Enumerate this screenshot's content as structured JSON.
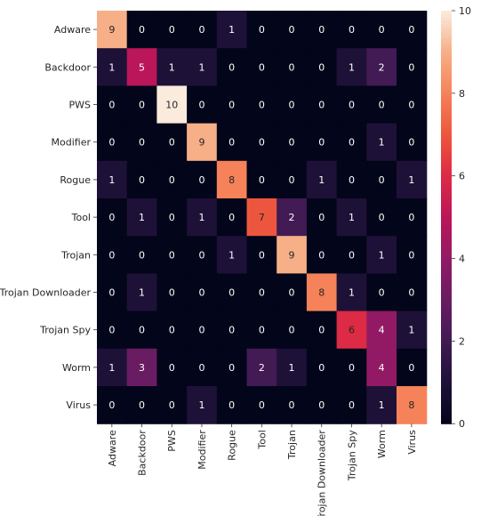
{
  "chart_data": {
    "type": "heatmap",
    "title": "",
    "xlabel": "",
    "ylabel": "",
    "x_categories": [
      "Adware",
      "Backdoor",
      "PWS",
      "Modifier",
      "Rogue",
      "Tool",
      "Trojan",
      "Trojan Downloader",
      "Trojan Spy",
      "Worm",
      "Virus"
    ],
    "y_categories": [
      "Adware",
      "Backdoor",
      "PWS",
      "Modifier",
      "Rogue",
      "Tool",
      "Trojan",
      "Trojan Downloader",
      "Trojan Spy",
      "Worm",
      "Virus"
    ],
    "values": [
      [
        9,
        0,
        0,
        0,
        1,
        0,
        0,
        0,
        0,
        0,
        0
      ],
      [
        1,
        5,
        1,
        1,
        0,
        0,
        0,
        0,
        1,
        2,
        0
      ],
      [
        0,
        0,
        10,
        0,
        0,
        0,
        0,
        0,
        0,
        0,
        0
      ],
      [
        0,
        0,
        0,
        9,
        0,
        0,
        0,
        0,
        0,
        1,
        0
      ],
      [
        1,
        0,
        0,
        0,
        8,
        0,
        0,
        1,
        0,
        0,
        1
      ],
      [
        0,
        1,
        0,
        1,
        0,
        7,
        2,
        0,
        1,
        0,
        0
      ],
      [
        0,
        0,
        0,
        0,
        1,
        0,
        9,
        0,
        0,
        1,
        0
      ],
      [
        0,
        1,
        0,
        0,
        0,
        0,
        0,
        8,
        1,
        0,
        0
      ],
      [
        0,
        0,
        0,
        0,
        0,
        0,
        0,
        0,
        6,
        4,
        1
      ],
      [
        1,
        3,
        0,
        0,
        0,
        2,
        1,
        0,
        0,
        4,
        0
      ],
      [
        0,
        0,
        0,
        1,
        0,
        0,
        0,
        0,
        0,
        1,
        8
      ]
    ],
    "colorbar": {
      "range": [
        0,
        10
      ],
      "ticks": [
        0,
        2,
        4,
        6,
        8,
        10
      ]
    },
    "colormap": "rocket",
    "grid": false
  }
}
